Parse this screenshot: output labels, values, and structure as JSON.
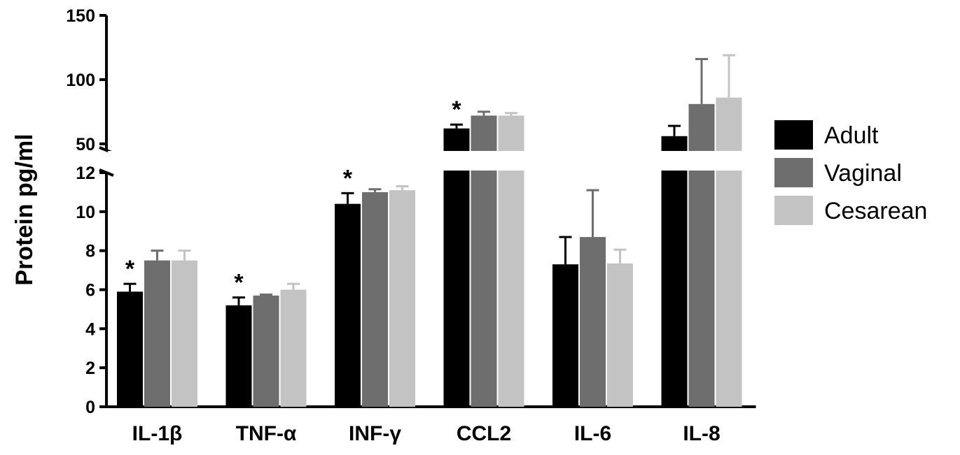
{
  "chart_data": {
    "type": "bar",
    "title": "",
    "xlabel": "",
    "ylabel": "Protein pg/ml",
    "categories": [
      "IL-1β",
      "TNF-α",
      "INF-γ",
      "CCL2",
      "IL-6",
      "IL-8"
    ],
    "series": [
      {
        "name": "Adult",
        "color": "#000000",
        "values": [
          5.9,
          5.2,
          10.4,
          62,
          7.3,
          56
        ],
        "errors": [
          0.4,
          0.4,
          0.55,
          3,
          1.4,
          8
        ]
      },
      {
        "name": "Vaginal",
        "color": "#6e6e6e",
        "values": [
          7.5,
          5.7,
          11.0,
          72,
          8.7,
          81
        ],
        "errors": [
          0.5,
          0.05,
          0.15,
          3,
          2.4,
          35
        ]
      },
      {
        "name": "Cesarean",
        "color": "#c3c3c3",
        "values": [
          7.5,
          6.0,
          11.1,
          72,
          7.35,
          86
        ],
        "errors": [
          0.5,
          0.3,
          0.2,
          2,
          0.7,
          33
        ]
      }
    ],
    "significance_marker": "*",
    "significant_categories": [
      "IL-1β",
      "TNF-α",
      "INF-γ",
      "CCL2"
    ],
    "y_axis_break": true,
    "lower_segment": {
      "ylim": [
        0,
        12
      ],
      "ticks": [
        0,
        2,
        4,
        6,
        8,
        10,
        12
      ]
    },
    "upper_segment": {
      "ylim": [
        45,
        150
      ],
      "ticks": [
        50,
        100,
        150
      ]
    },
    "grid": false,
    "legend_position": "right"
  }
}
